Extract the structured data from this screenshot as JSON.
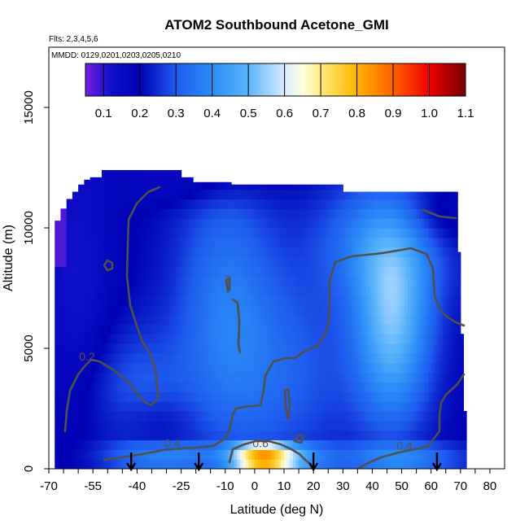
{
  "chart_data": {
    "type": "heatmap",
    "title": "ATOM2 Southbound Acetone_GMI",
    "subtitle_flights": "Flts: 2,3,4,5,6",
    "subtitle_dates": "MMDD: 0129,0201,0203,0205,0210",
    "xlabel": "Latitude (deg N)",
    "ylabel": "Altitude (m)",
    "xlim": [
      -70,
      85
    ],
    "ylim": [
      0,
      17500
    ],
    "x_ticks": [
      "-70",
      "-55",
      "-40",
      "-25",
      "-10",
      "0",
      "10",
      "20",
      "30",
      "40",
      "50",
      "60",
      "70",
      "80"
    ],
    "x_tick_values": [
      -70,
      -55,
      -40,
      -25,
      -10,
      0,
      10,
      20,
      30,
      40,
      50,
      60,
      70,
      80
    ],
    "y_ticks": [
      "0",
      "5000",
      "10000",
      "15000"
    ],
    "y_tick_values": [
      0,
      5000,
      10000,
      15000
    ],
    "colorbar": {
      "ticks": [
        "0.1",
        "0.2",
        "0.3",
        "0.4",
        "0.5",
        "0.6",
        "0.7",
        "0.8",
        "0.9",
        "1.0",
        "1.1"
      ],
      "tick_values": [
        0.1,
        0.2,
        0.3,
        0.4,
        0.5,
        0.6,
        0.7,
        0.8,
        0.9,
        1.0,
        1.1
      ],
      "range": [
        0.05,
        1.1
      ],
      "stops": [
        {
          "v": 0.05,
          "color": "#7a1fe0"
        },
        {
          "v": 0.12,
          "color": "#1010c8"
        },
        {
          "v": 0.2,
          "color": "#0000b4"
        },
        {
          "v": 0.3,
          "color": "#1f5cf0"
        },
        {
          "v": 0.4,
          "color": "#2a8df7"
        },
        {
          "v": 0.5,
          "color": "#5cb4fb"
        },
        {
          "v": 0.6,
          "color": "#d6ecff"
        },
        {
          "v": 0.65,
          "color": "#ffffe0"
        },
        {
          "v": 0.72,
          "color": "#ffe060"
        },
        {
          "v": 0.8,
          "color": "#ffb400"
        },
        {
          "v": 0.9,
          "color": "#ff6000"
        },
        {
          "v": 1.0,
          "color": "#ee0000"
        },
        {
          "v": 1.1,
          "color": "#7a0000"
        }
      ]
    },
    "contour_labels": [
      {
        "text": "0.2",
        "lat": -57,
        "alt": 4500
      },
      {
        "text": "0.4",
        "lat": -28,
        "alt": 900
      },
      {
        "text": "0.4",
        "lat": 51,
        "alt": 800
      },
      {
        "text": "0.6",
        "lat": 2,
        "alt": 900
      },
      {
        "text": "0",
        "lat": -9,
        "alt": 7700
      }
    ],
    "sonde_arrows_lat": [
      -42,
      -19,
      20,
      62
    ]
  }
}
